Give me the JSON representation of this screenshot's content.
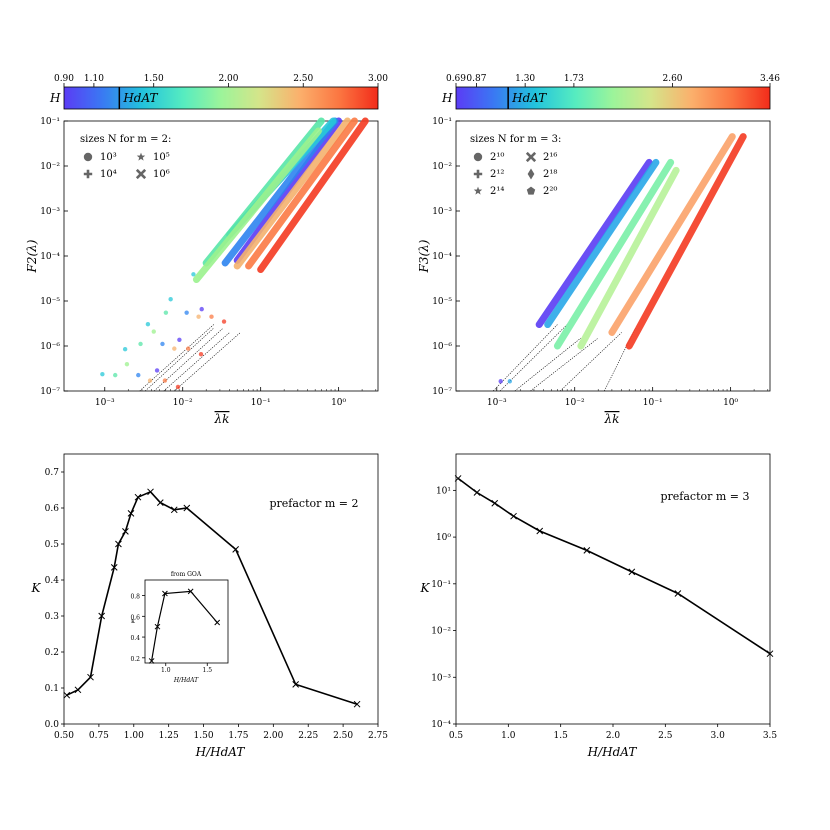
{
  "chart_data": [
    {
      "id": "top_left",
      "type": "scatter",
      "ylabel": "F2(λ)",
      "xlabel": "λk",
      "xscale": "log",
      "yscale": "log",
      "xlim": [
        0.0003,
        3.2
      ],
      "ylim": [
        1e-07,
        0.1
      ],
      "xticks": [
        {
          "v": 0.001,
          "label": "10⁻³"
        },
        {
          "v": 0.01,
          "label": "10⁻²"
        },
        {
          "v": 0.1,
          "label": "10⁻¹"
        },
        {
          "v": 1,
          "label": "10⁰"
        }
      ],
      "yticks": [
        {
          "v": 1e-07,
          "label": "10⁻⁷"
        },
        {
          "v": 1e-06,
          "label": "10⁻⁶"
        },
        {
          "v": 1e-05,
          "label": "10⁻⁵"
        },
        {
          "v": 0.0001,
          "label": "10⁻⁴"
        },
        {
          "v": 0.001,
          "label": "10⁻³"
        },
        {
          "v": 0.01,
          "label": "10⁻²"
        },
        {
          "v": 0.1,
          "label": "10⁻¹"
        }
      ],
      "legend": {
        "title": "sizes N for m = 2:",
        "position": "top-left",
        "entries": [
          {
            "marker": "circle",
            "label": "10³"
          },
          {
            "marker": "star",
            "label": "10⁵"
          },
          {
            "marker": "plus",
            "label": "10⁴"
          },
          {
            "marker": "x",
            "label": "10⁶"
          }
        ]
      },
      "colorbar": {
        "label": "H",
        "marker_label": "HdAT",
        "tick_labels": [
          "0.90",
          "1.10",
          "1.50",
          "2.00",
          "2.50",
          "3.00"
        ],
        "marker_value": 1.27,
        "vmin": 0.9,
        "vmax": 3.0
      },
      "series": [
        {
          "H": 0.9,
          "color": "#5a3cf5",
          "x": [
            0.05,
            1.0
          ],
          "y": [
            8e-05,
            0.1
          ]
        },
        {
          "H": 1.05,
          "color": "#2e84f0",
          "x": [
            0.035,
            0.9
          ],
          "y": [
            7e-05,
            0.1
          ]
        },
        {
          "H": 1.15,
          "color": "#27c8d8",
          "x": [
            0.04,
            0.85
          ],
          "y": [
            0.0003,
            0.1
          ]
        },
        {
          "H": 1.3,
          "color": "#58e6a8",
          "x": [
            0.02,
            0.6
          ],
          "y": [
            7e-05,
            0.1
          ]
        },
        {
          "H": 1.5,
          "color": "#9cf28e",
          "x": [
            0.015,
            0.55
          ],
          "y": [
            3e-05,
            0.06
          ]
        },
        {
          "H": 2.0,
          "color": "#f5b26e",
          "x": [
            0.05,
            1.3
          ],
          "y": [
            6e-05,
            0.1
          ]
        },
        {
          "H": 2.5,
          "color": "#fb7b45",
          "x": [
            0.07,
            1.6
          ],
          "y": [
            6e-05,
            0.1
          ]
        },
        {
          "H": 3.0,
          "color": "#f43a22",
          "x": [
            0.1,
            2.2
          ],
          "y": [
            5e-05,
            0.1
          ]
        }
      ],
      "fits": [
        {
          "x": [
            0.0028,
            0.025
          ],
          "y": [
            1e-07,
            3e-06
          ]
        },
        {
          "x": [
            0.0033,
            0.025
          ],
          "y": [
            1e-07,
            2.5e-06
          ]
        },
        {
          "x": [
            0.0043,
            0.033
          ],
          "y": [
            1e-07,
            2.5e-06
          ]
        },
        {
          "x": [
            0.0057,
            0.04
          ],
          "y": [
            1e-07,
            2e-06
          ]
        },
        {
          "x": [
            0.0078,
            0.055
          ],
          "y": [
            1e-07,
            2e-06
          ]
        }
      ]
    },
    {
      "id": "top_right",
      "type": "scatter",
      "ylabel": "F3(λ)",
      "xlabel": "λk",
      "xscale": "log",
      "yscale": "log",
      "xlim": [
        0.0003,
        3.2
      ],
      "ylim": [
        1e-07,
        0.1
      ],
      "xticks": [
        {
          "v": 0.001,
          "label": "10⁻³"
        },
        {
          "v": 0.01,
          "label": "10⁻²"
        },
        {
          "v": 0.1,
          "label": "10⁻¹"
        },
        {
          "v": 1,
          "label": "10⁰"
        }
      ],
      "yticks": [
        {
          "v": 1e-07,
          "label": "10⁻⁷"
        },
        {
          "v": 1e-06,
          "label": "10⁻⁶"
        },
        {
          "v": 1e-05,
          "label": "10⁻⁵"
        },
        {
          "v": 0.0001,
          "label": "10⁻⁴"
        },
        {
          "v": 0.001,
          "label": "10⁻³"
        },
        {
          "v": 0.01,
          "label": "10⁻²"
        },
        {
          "v": 0.1,
          "label": "10⁻¹"
        }
      ],
      "legend": {
        "title": "sizes N for m = 3:",
        "position": "top-left",
        "entries": [
          {
            "marker": "circle",
            "label": "2¹⁰"
          },
          {
            "marker": "x",
            "label": "2¹⁶"
          },
          {
            "marker": "plus",
            "label": "2¹²"
          },
          {
            "marker": "diamond",
            "label": "2¹⁸"
          },
          {
            "marker": "star",
            "label": "2¹⁴"
          },
          {
            "marker": "pentagon",
            "label": "2²⁰"
          }
        ]
      },
      "colorbar": {
        "label": "H",
        "marker_label": "HdAT",
        "tick_labels": [
          "0.69",
          "0.87",
          "1.30",
          "1.73",
          "2.60",
          "3.46"
        ],
        "marker_value": 1.15,
        "vmin": 0.69,
        "vmax": 3.46
      },
      "series": [
        {
          "H": 0.69,
          "color": "#5a3cf5",
          "x": [
            0.0035,
            0.09
          ],
          "y": [
            3e-06,
            0.012
          ]
        },
        {
          "H": 0.87,
          "color": "#2aa8e8",
          "x": [
            0.0045,
            0.11
          ],
          "y": [
            3e-06,
            0.012
          ]
        },
        {
          "H": 1.3,
          "color": "#7bf0a8",
          "x": [
            0.006,
            0.17
          ],
          "y": [
            1e-06,
            0.012
          ]
        },
        {
          "H": 1.73,
          "color": "#b8f29a",
          "x": [
            0.012,
            0.2
          ],
          "y": [
            1e-06,
            0.008
          ]
        },
        {
          "H": 2.6,
          "color": "#fba36a",
          "x": [
            0.03,
            1.05
          ],
          "y": [
            2e-06,
            0.045
          ]
        },
        {
          "H": 3.46,
          "color": "#f43a22",
          "x": [
            0.05,
            1.45
          ],
          "y": [
            1e-06,
            0.045
          ]
        }
      ],
      "fits": [
        {
          "x": [
            0.0009,
            0.006
          ],
          "y": [
            1e-07,
            3e-06
          ]
        },
        {
          "x": [
            0.0011,
            0.008
          ],
          "y": [
            1e-07,
            3e-06
          ]
        },
        {
          "x": [
            0.0017,
            0.012
          ],
          "y": [
            1e-07,
            1.5e-06
          ]
        },
        {
          "x": [
            0.0027,
            0.02
          ],
          "y": [
            1e-07,
            1.5e-06
          ]
        },
        {
          "x": [
            0.0065,
            0.04
          ],
          "y": [
            1e-07,
            2e-06
          ]
        },
        {
          "x": [
            0.024,
            0.06
          ],
          "y": [
            1e-07,
            2.5e-06
          ]
        }
      ]
    },
    {
      "id": "bottom_left",
      "type": "line",
      "xlabel": "H/HdAT",
      "ylabel": "K",
      "annotation": "prefactor m = 2",
      "xlim": [
        0.5,
        2.75
      ],
      "ylim": [
        0.0,
        0.75
      ],
      "xticks": [
        0.5,
        0.75,
        1.0,
        1.25,
        1.5,
        1.75,
        2.0,
        2.25,
        2.5,
        2.75
      ],
      "xtick_labels": [
        "0.50",
        "0.75",
        "1.00",
        "1.25",
        "1.50",
        "1.75",
        "2.00",
        "2.25",
        "2.50",
        "2.75"
      ],
      "yticks": [
        0.0,
        0.1,
        0.2,
        0.3,
        0.4,
        0.5,
        0.6,
        0.7
      ],
      "ytick_labels": [
        "0.0",
        "0.1",
        "0.2",
        "0.3",
        "0.4",
        "0.5",
        "0.6",
        "0.7"
      ],
      "x": [
        0.52,
        0.6,
        0.69,
        0.77,
        0.86,
        0.89,
        0.94,
        0.98,
        1.03,
        1.12,
        1.19,
        1.29,
        1.38,
        1.73,
        2.16,
        2.6
      ],
      "y": [
        0.08,
        0.095,
        0.13,
        0.3,
        0.435,
        0.5,
        0.535,
        0.585,
        0.63,
        0.645,
        0.615,
        0.595,
        0.6,
        0.485,
        0.11,
        0.055
      ],
      "inset": {
        "title": "from GOA",
        "xlabel": "H/HdAT",
        "ylabel": "κ",
        "xlim": [
          0.75,
          1.75
        ],
        "ylim": [
          0.15,
          0.95
        ],
        "xticks": [
          1.0,
          1.5
        ],
        "xtick_labels": [
          "1.0",
          "1.5"
        ],
        "yticks": [
          0.2,
          0.4,
          0.6,
          0.8
        ],
        "ytick_labels": [
          "0.2",
          "0.4",
          "0.6",
          "0.8"
        ],
        "x": [
          0.83,
          0.9,
          0.99,
          1.3,
          1.62
        ],
        "y": [
          0.17,
          0.5,
          0.82,
          0.84,
          0.54
        ]
      }
    },
    {
      "id": "bottom_right",
      "type": "line",
      "xlabel": "H/HdAT",
      "ylabel": "K",
      "annotation": "prefactor m = 3",
      "yscale": "log",
      "xlim": [
        0.5,
        3.5
      ],
      "ylim": [
        0.0001,
        60
      ],
      "xticks": [
        0.5,
        1.0,
        1.5,
        2.0,
        2.5,
        3.0,
        3.5
      ],
      "xtick_labels": [
        "0.5",
        "1.0",
        "1.5",
        "2.0",
        "2.5",
        "3.0",
        "3.5"
      ],
      "yticks": [
        {
          "v": 0.0001,
          "label": "10⁻⁴"
        },
        {
          "v": 0.001,
          "label": "10⁻³"
        },
        {
          "v": 0.01,
          "label": "10⁻²"
        },
        {
          "v": 0.1,
          "label": "10⁻¹"
        },
        {
          "v": 1,
          "label": "10⁰"
        },
        {
          "v": 10,
          "label": "10¹"
        }
      ],
      "x": [
        0.52,
        0.7,
        0.87,
        1.05,
        1.3,
        1.75,
        2.18,
        2.62,
        3.5
      ],
      "y": [
        18,
        9,
        5.3,
        2.8,
        1.35,
        0.52,
        0.18,
        0.062,
        0.0032
      ]
    }
  ]
}
